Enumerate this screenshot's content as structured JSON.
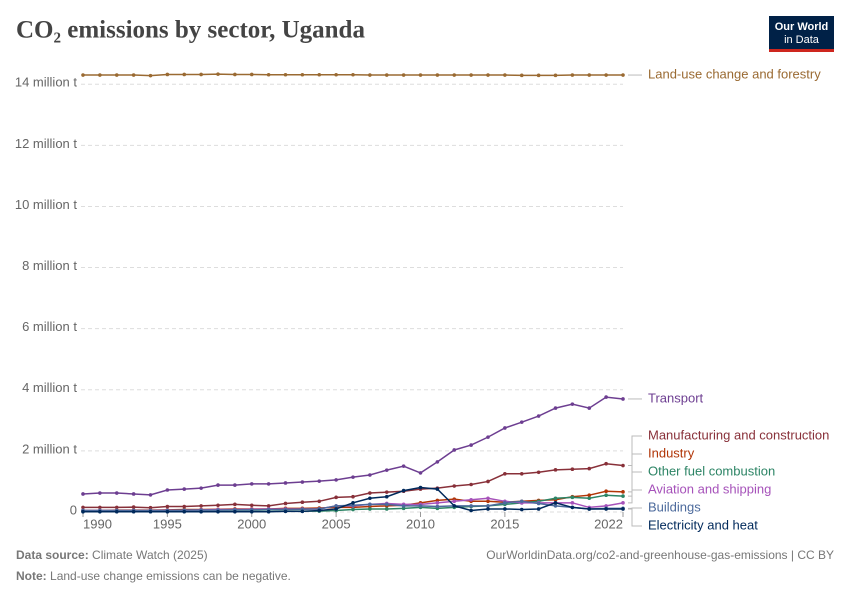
{
  "chart_data": {
    "type": "line",
    "title": "CO₂ emissions by sector, Uganda",
    "logo": [
      "Our World",
      "in Data"
    ],
    "source_label": "Data source:",
    "source": "Climate Watch (2025)",
    "url": "OurWorldinData.org/co2-and-greenhouse-gas-emissions | CC BY",
    "note_label": "Note:",
    "note": "Land-use change emissions can be negative.",
    "x": [
      1990,
      1991,
      1992,
      1993,
      1994,
      1995,
      1996,
      1997,
      1998,
      1999,
      2000,
      2001,
      2002,
      2003,
      2004,
      2005,
      2006,
      2007,
      2008,
      2009,
      2010,
      2011,
      2012,
      2013,
      2014,
      2015,
      2016,
      2017,
      2018,
      2019,
      2020,
      2021,
      2022
    ],
    "xlim": [
      1990,
      2022
    ],
    "xticks": [
      1990,
      1995,
      2000,
      2005,
      2010,
      2015,
      2022
    ],
    "ylim": [
      0,
      14400000
    ],
    "yticks": [
      {
        "value": 0,
        "label": "0"
      },
      {
        "value": 2000000,
        "label": "2 million t"
      },
      {
        "value": 4000000,
        "label": "4 million t"
      },
      {
        "value": 6000000,
        "label": "6 million t"
      },
      {
        "value": 8000000,
        "label": "8 million t"
      },
      {
        "value": 10000000,
        "label": "10 million t"
      },
      {
        "value": 12000000,
        "label": "12 million t"
      },
      {
        "value": 14000000,
        "label": "14 million t"
      }
    ],
    "grid": true,
    "series": [
      {
        "name": "Land-use change and forestry",
        "color": "#9a6a32",
        "values": [
          14300000,
          14300000,
          14300000,
          14300000,
          14280000,
          14320000,
          14320000,
          14320000,
          14330000,
          14320000,
          14320000,
          14310000,
          14310000,
          14310000,
          14310000,
          14310000,
          14310000,
          14300000,
          14300000,
          14300000,
          14300000,
          14300000,
          14300000,
          14300000,
          14300000,
          14300000,
          14290000,
          14290000,
          14290000,
          14300000,
          14300000,
          14300000,
          14300000
        ]
      },
      {
        "name": "Transport",
        "color": "#6d3e91",
        "values": [
          590000,
          620000,
          620000,
          590000,
          560000,
          720000,
          750000,
          780000,
          880000,
          880000,
          920000,
          920000,
          950000,
          980000,
          1010000,
          1050000,
          1140000,
          1210000,
          1370000,
          1500000,
          1280000,
          1640000,
          2030000,
          2190000,
          2450000,
          2750000,
          2940000,
          3140000,
          3400000,
          3530000,
          3400000,
          3760000,
          3700000
        ]
      },
      {
        "name": "Manufacturing and construction",
        "color": "#883039",
        "values": [
          150000,
          150000,
          150000,
          160000,
          140000,
          180000,
          180000,
          200000,
          220000,
          250000,
          220000,
          200000,
          280000,
          320000,
          350000,
          480000,
          500000,
          620000,
          650000,
          680000,
          750000,
          780000,
          850000,
          900000,
          1000000,
          1250000,
          1250000,
          1300000,
          1380000,
          1400000,
          1420000,
          1580000,
          1520000
        ]
      },
      {
        "name": "Industry",
        "color": "#b13507",
        "values": [
          50000,
          50000,
          60000,
          60000,
          60000,
          70000,
          80000,
          80000,
          90000,
          100000,
          100000,
          100000,
          120000,
          120000,
          130000,
          150000,
          150000,
          180000,
          200000,
          220000,
          300000,
          380000,
          420000,
          350000,
          350000,
          320000,
          350000,
          380000,
          400000,
          500000,
          550000,
          680000,
          660000
        ]
      },
      {
        "name": "Other fuel combustion",
        "color": "#2c8465",
        "values": [
          20000,
          20000,
          20000,
          20000,
          20000,
          20000,
          20000,
          20000,
          20000,
          20000,
          20000,
          20000,
          30000,
          30000,
          30000,
          50000,
          80000,
          100000,
          100000,
          120000,
          150000,
          120000,
          150000,
          180000,
          200000,
          250000,
          300000,
          350000,
          450000,
          480000,
          450000,
          550000,
          520000
        ]
      },
      {
        "name": "Aviation and shipping",
        "color": "#a652ba",
        "values": [
          50000,
          50000,
          50000,
          50000,
          50000,
          60000,
          60000,
          70000,
          80000,
          80000,
          90000,
          100000,
          100000,
          100000,
          100000,
          200000,
          200000,
          250000,
          280000,
          250000,
          250000,
          300000,
          350000,
          400000,
          450000,
          350000,
          300000,
          300000,
          300000,
          300000,
          150000,
          200000,
          300000
        ]
      },
      {
        "name": "Buildings",
        "color": "#4c6a9c",
        "values": [
          50000,
          50000,
          50000,
          50000,
          50000,
          50000,
          60000,
          60000,
          60000,
          70000,
          70000,
          80000,
          80000,
          90000,
          100000,
          200000,
          220000,
          250000,
          250000,
          200000,
          200000,
          180000,
          200000,
          200000,
          200000,
          300000,
          350000,
          280000,
          200000,
          150000,
          100000,
          120000,
          120000
        ]
      },
      {
        "name": "Electricity and heat",
        "color": "#00295b",
        "values": [
          10000,
          10000,
          10000,
          10000,
          10000,
          10000,
          10000,
          10000,
          10000,
          10000,
          10000,
          10000,
          20000,
          20000,
          50000,
          100000,
          300000,
          450000,
          500000,
          700000,
          800000,
          750000,
          200000,
          50000,
          100000,
          100000,
          80000,
          100000,
          300000,
          150000,
          100000,
          100000,
          100000
        ]
      }
    ]
  }
}
